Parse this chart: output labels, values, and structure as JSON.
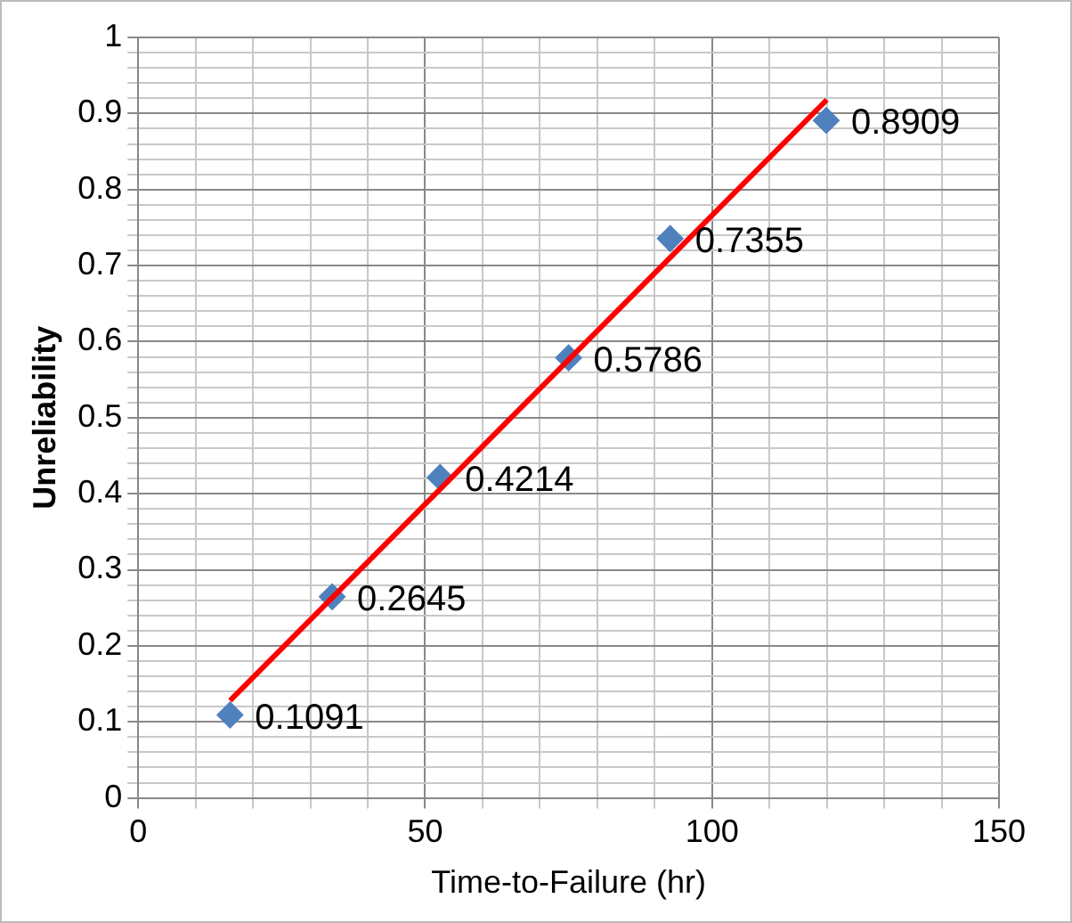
{
  "chart_data": {
    "type": "scatter",
    "xlabel": "Time-to-Failure (hr)",
    "ylabel": "Unreliability",
    "series": [
      {
        "color": "#4f81bd",
        "x": [
          16,
          33.8,
          52.6,
          75,
          92.7,
          119.9
        ],
        "values": [
          0.1091,
          0.2645,
          0.4214,
          0.5786,
          0.7355,
          0.8909
        ],
        "value_labels": [
          "0.1091",
          "0.2645",
          "0.4214",
          "0.5786",
          "0.7355",
          "0.8909"
        ],
        "marker": "diamond"
      },
      {
        "type": "line",
        "color": "#ff0000",
        "x": [
          16,
          120
        ],
        "values": [
          0.128,
          0.918
        ],
        "marker": "none",
        "line_style": "solid"
      }
    ],
    "grid": true,
    "legend": false,
    "xlim": [
      0,
      150
    ],
    "ylim": [
      0,
      1
    ],
    "xticks": [
      0,
      {
        "value": 10,
        "label": null
      },
      {
        "value": 20,
        "label": null
      },
      {
        "value": 30,
        "label": null
      },
      {
        "value": 40,
        "label": null
      },
      50,
      {
        "value": 60,
        "label": null
      },
      {
        "value": 70,
        "label": null
      },
      {
        "value": 80,
        "label": null
      },
      {
        "value": 90,
        "label": null
      },
      100,
      {
        "value": 110,
        "label": null
      },
      {
        "value": 120,
        "label": null
      },
      {
        "value": 130,
        "label": null
      },
      {
        "value": 140,
        "label": null
      },
      150
    ],
    "yticks": [
      0,
      {
        "value": 0.02,
        "label": null
      },
      {
        "value": 0.04,
        "label": null
      },
      {
        "value": 0.06,
        "label": null
      },
      {
        "value": 0.08,
        "label": null
      },
      0.1,
      {
        "value": 0.12,
        "label": null
      },
      {
        "value": 0.14,
        "label": null
      },
      {
        "value": 0.16,
        "label": null
      },
      {
        "value": 0.18,
        "label": null
      },
      0.2,
      {
        "value": 0.22,
        "label": null
      },
      {
        "value": 0.24,
        "label": null
      },
      {
        "value": 0.26,
        "label": null
      },
      {
        "value": 0.28,
        "label": null
      },
      0.3,
      {
        "value": 0.32,
        "label": null
      },
      {
        "value": 0.34,
        "label": null
      },
      {
        "value": 0.36,
        "label": null
      },
      {
        "value": 0.38,
        "label": null
      },
      0.4,
      {
        "value": 0.42,
        "label": null
      },
      {
        "value": 0.44,
        "label": null
      },
      {
        "value": 0.46,
        "label": null
      },
      {
        "value": 0.48,
        "label": null
      },
      0.5,
      {
        "value": 0.52,
        "label": null
      },
      {
        "value": 0.54,
        "label": null
      },
      {
        "value": 0.56,
        "label": null
      },
      {
        "value": 0.58,
        "label": null
      },
      0.6,
      {
        "value": 0.62,
        "label": null
      },
      {
        "value": 0.64,
        "label": null
      },
      {
        "value": 0.66,
        "label": null
      },
      {
        "value": 0.68,
        "label": null
      },
      0.7,
      {
        "value": 0.72,
        "label": null
      },
      {
        "value": 0.74,
        "label": null
      },
      {
        "value": 0.76,
        "label": null
      },
      {
        "value": 0.78,
        "label": null
      },
      0.8,
      {
        "value": 0.82,
        "label": null
      },
      {
        "value": 0.84,
        "label": null
      },
      {
        "value": 0.86,
        "label": null
      },
      {
        "value": 0.88,
        "label": null
      },
      0.9,
      {
        "value": 0.92,
        "label": null
      },
      {
        "value": 0.94,
        "label": null
      },
      {
        "value": 0.96,
        "label": null
      },
      {
        "value": 0.98,
        "label": null
      },
      1
    ]
  }
}
